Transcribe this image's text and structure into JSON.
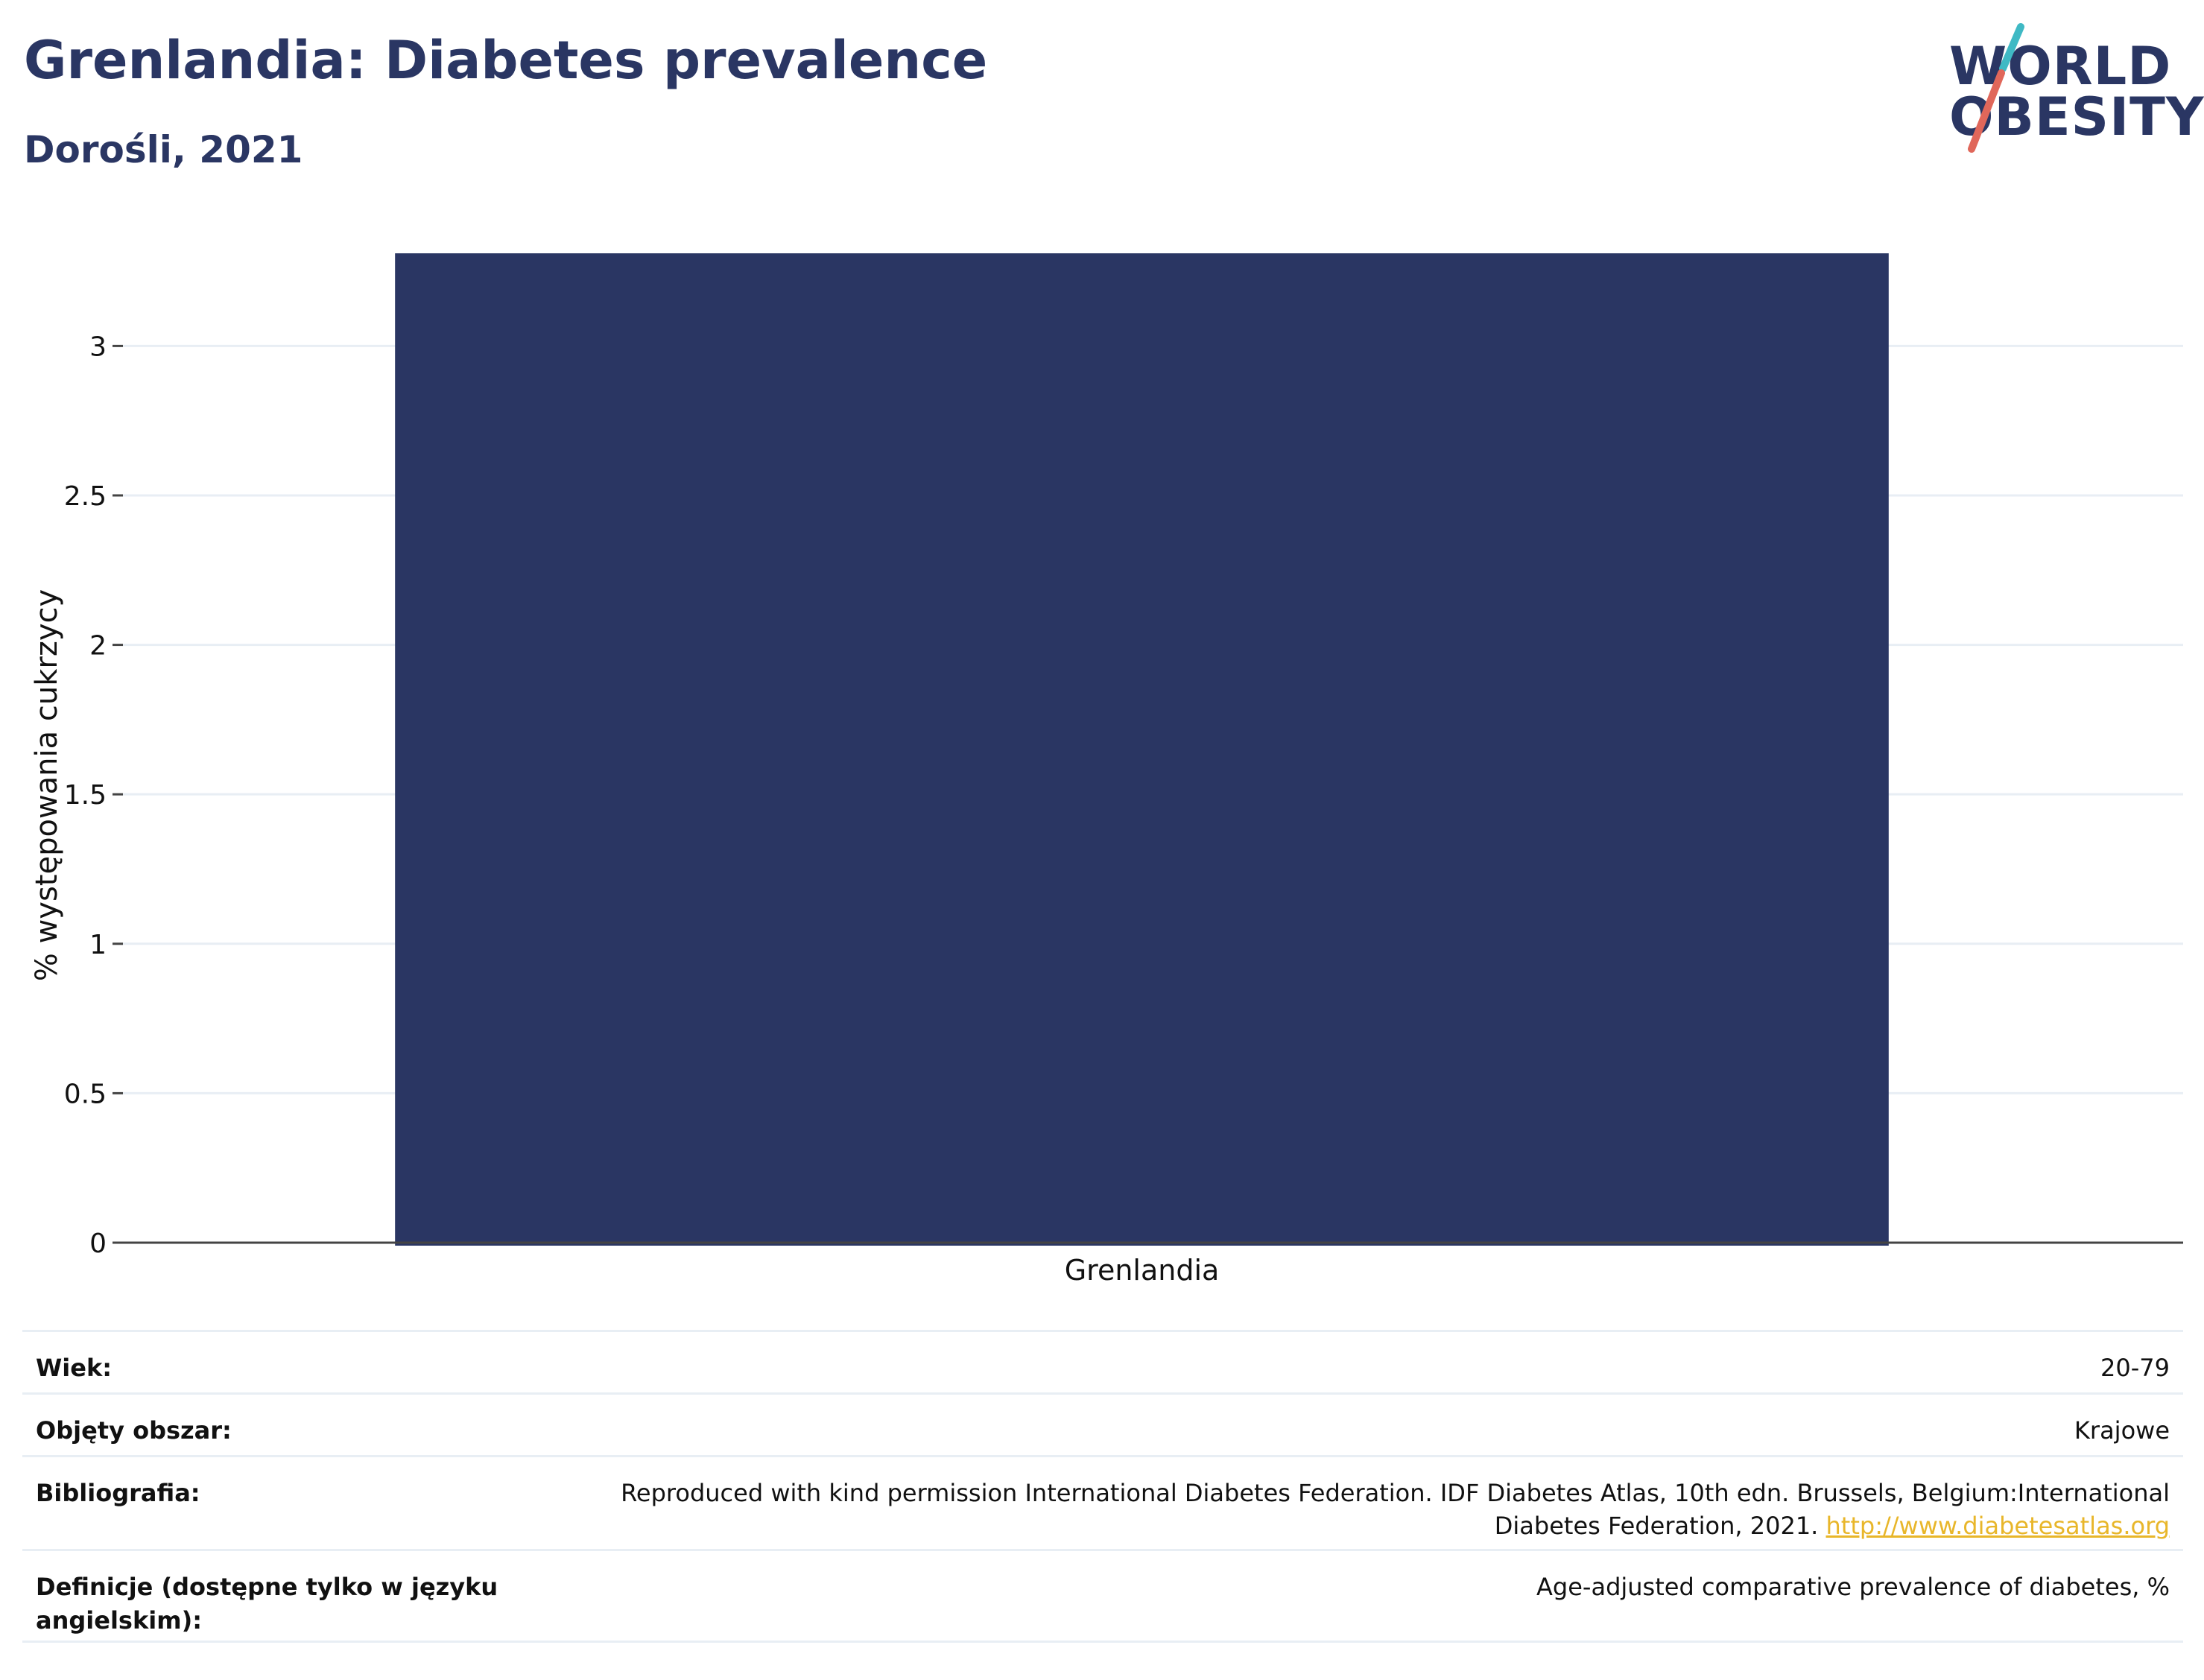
{
  "header": {
    "title": "Grenlandia: Diabetes prevalence",
    "subtitle": "Dorośli, 2021"
  },
  "logo": {
    "line1": "WORLD",
    "line2": "OBESITY",
    "colors": {
      "text": "#2a3663",
      "slash_top": "#3fb9c4",
      "slash_bottom": "#e0675a"
    }
  },
  "chart_data": {
    "type": "bar",
    "categories": [
      "Grenlandia"
    ],
    "values": [
      3.31
    ],
    "title": "",
    "xlabel": "",
    "ylabel": "% występowania cukrzycy",
    "ylim": [
      0,
      3.31
    ],
    "yticks": [
      0,
      0.5,
      1,
      1.5,
      2,
      2.5,
      3
    ],
    "ytick_labels": [
      "0",
      "0.5",
      "1",
      "1.5",
      "2",
      "2.5",
      "3"
    ],
    "grid": true,
    "colors": {
      "bar": "#2a3663",
      "grid": "#e8eef4",
      "axis": "#444444"
    }
  },
  "meta": {
    "rows": [
      {
        "label": "Wiek:",
        "value": "20-79"
      },
      {
        "label": "Objęty obszar:",
        "value": "Krajowe"
      },
      {
        "label": "Bibliografia:",
        "value_line1": "Reproduced with kind permission International Diabetes Federation.  IDF Diabetes Atlas, 10th edn. Brussels, Belgium:International",
        "value_line2_text": "Diabetes Federation, 2021. ",
        "link_text": "http://www.diabetesatlas.org"
      },
      {
        "label": "Definicje (dostępne tylko w języku angielskim):",
        "value": "Age-adjusted comparative prevalence of diabetes, %"
      }
    ],
    "link_color": "#e8b62a"
  }
}
